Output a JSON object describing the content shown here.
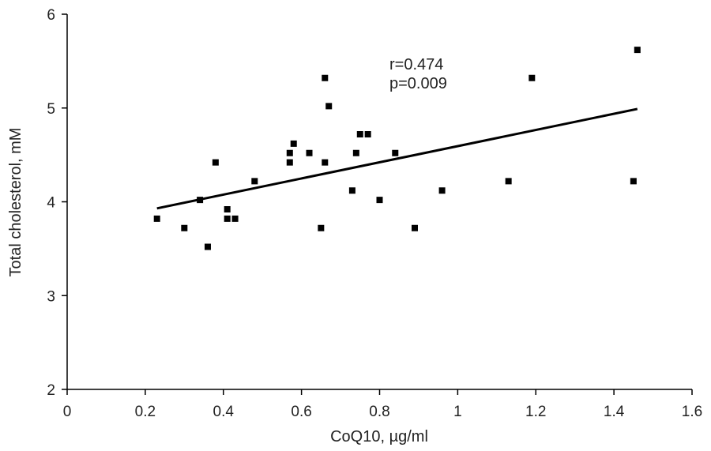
{
  "chart_data": {
    "type": "scatter",
    "title": "",
    "xlabel": "CoQ10, µg/ml",
    "ylabel": "Total cholesterol, mM",
    "xlim": [
      0,
      1.6
    ],
    "ylim": [
      2,
      6
    ],
    "x_ticks": [
      0,
      0.2,
      0.4,
      0.6,
      0.8,
      1,
      1.2,
      1.4,
      1.6
    ],
    "y_ticks": [
      2,
      3,
      4,
      5,
      6
    ],
    "x_tick_labels": [
      "0",
      "0.2",
      "0.4",
      "0.6",
      "0.8",
      "1",
      "1.2",
      "1.4",
      "1.6"
    ],
    "y_tick_labels": [
      "2",
      "3",
      "4",
      "5",
      "6"
    ],
    "grid": false,
    "marker_color": "#000000",
    "annotations": [
      "r=0.474",
      "p=0.009"
    ],
    "trendline": {
      "x": [
        0.23,
        1.46
      ],
      "y": [
        3.93,
        4.99
      ]
    },
    "points": [
      {
        "x": 0.23,
        "y": 3.82
      },
      {
        "x": 0.3,
        "y": 3.72
      },
      {
        "x": 0.34,
        "y": 4.02
      },
      {
        "x": 0.36,
        "y": 3.52
      },
      {
        "x": 0.38,
        "y": 4.42
      },
      {
        "x": 0.41,
        "y": 3.92
      },
      {
        "x": 0.41,
        "y": 3.82
      },
      {
        "x": 0.43,
        "y": 3.82
      },
      {
        "x": 0.48,
        "y": 4.22
      },
      {
        "x": 0.57,
        "y": 4.52
      },
      {
        "x": 0.57,
        "y": 4.42
      },
      {
        "x": 0.58,
        "y": 4.62
      },
      {
        "x": 0.62,
        "y": 4.52
      },
      {
        "x": 0.65,
        "y": 3.72
      },
      {
        "x": 0.66,
        "y": 5.32
      },
      {
        "x": 0.66,
        "y": 4.42
      },
      {
        "x": 0.67,
        "y": 5.02
      },
      {
        "x": 0.73,
        "y": 4.12
      },
      {
        "x": 0.74,
        "y": 4.52
      },
      {
        "x": 0.75,
        "y": 4.72
      },
      {
        "x": 0.77,
        "y": 4.72
      },
      {
        "x": 0.8,
        "y": 4.02
      },
      {
        "x": 0.84,
        "y": 4.52
      },
      {
        "x": 0.89,
        "y": 3.72
      },
      {
        "x": 0.96,
        "y": 4.12
      },
      {
        "x": 1.13,
        "y": 4.22
      },
      {
        "x": 1.19,
        "y": 5.32
      },
      {
        "x": 1.45,
        "y": 4.22
      },
      {
        "x": 1.46,
        "y": 5.62
      }
    ]
  }
}
